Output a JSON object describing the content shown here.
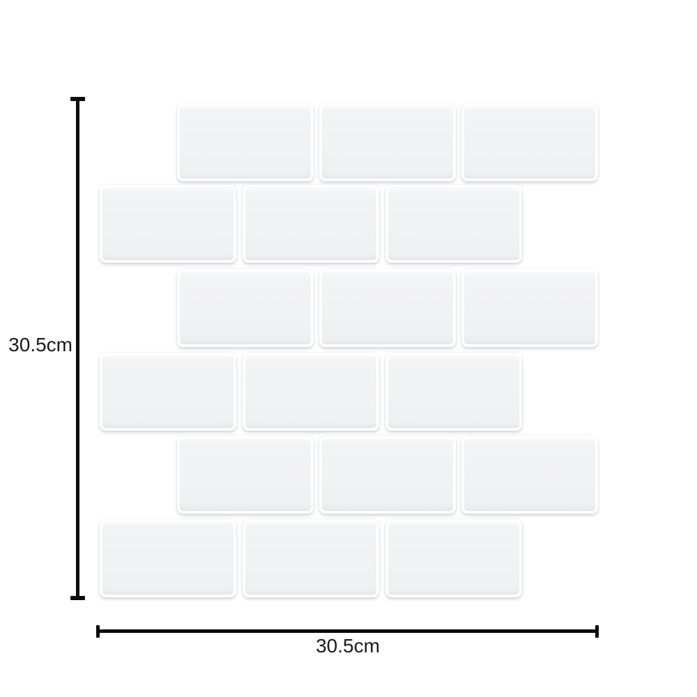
{
  "diagram": {
    "subject": "White subway-tile peel-and-stick wall panel shown with its physical dimensions",
    "background_color": "#ffffff"
  },
  "dimensions": {
    "height_label": "30.5cm",
    "width_label": "30.5cm"
  },
  "tile_panel": {
    "rows": 6,
    "tiles_per_row": 3,
    "pattern": "running-bond (alternate rows offset by half a tile, giving jagged left/right edges)",
    "tile": {
      "width": 196,
      "height": 112,
      "corner_radius": 9,
      "fill_color": "#f1f2f4",
      "grout_color": "#ffffff"
    },
    "row_tops": [
      148,
      265,
      386,
      506,
      625,
      745
    ],
    "offset_row_lefts": [
      254,
      458,
      662
    ],
    "flush_row_lefts": [
      143,
      348,
      553
    ],
    "offset_row_indices": [
      0,
      2,
      4
    ]
  },
  "style": {
    "dimension_line_color": "#0a0a0a",
    "label_text_color": "#1a1a1a"
  }
}
